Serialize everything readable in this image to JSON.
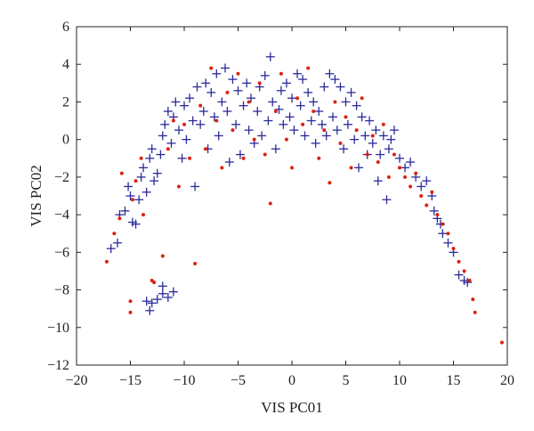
{
  "chart_data": {
    "type": "scatter",
    "xlabel": "VIS PC01",
    "ylabel": "VIS PC02",
    "xlim": [
      -20,
      20
    ],
    "ylim": [
      -12,
      6
    ],
    "xticks": [
      -20,
      -15,
      -10,
      -5,
      0,
      5,
      10,
      15,
      20
    ],
    "yticks": [
      -12,
      -10,
      -8,
      -6,
      -4,
      -2,
      0,
      2,
      4,
      6
    ],
    "grid": false,
    "legend": "none",
    "series": [
      {
        "marker": "plus",
        "color": "#2b2b9a",
        "points": [
          [
            -16.8,
            -5.8
          ],
          [
            -16.2,
            -5.5
          ],
          [
            -16.0,
            -4.0
          ],
          [
            -15.5,
            -3.8
          ],
          [
            -15.2,
            -2.5
          ],
          [
            -15.0,
            -3.0
          ],
          [
            -14.8,
            -4.4
          ],
          [
            -14.5,
            -4.5
          ],
          [
            -14.2,
            -3.2
          ],
          [
            -14.0,
            -2.0
          ],
          [
            -13.8,
            -1.5
          ],
          [
            -13.5,
            -2.8
          ],
          [
            -13.2,
            -1.0
          ],
          [
            -13.0,
            -0.5
          ],
          [
            -12.8,
            -2.2
          ],
          [
            -12.5,
            -1.8
          ],
          [
            -12.2,
            -0.8
          ],
          [
            -12.0,
            0.2
          ],
          [
            -11.8,
            0.8
          ],
          [
            -11.5,
            1.5
          ],
          [
            -11.2,
            -0.2
          ],
          [
            -11.0,
            1.2
          ],
          [
            -10.8,
            2.0
          ],
          [
            -10.5,
            0.5
          ],
          [
            -10.2,
            -1.0
          ],
          [
            -10.0,
            1.8
          ],
          [
            -9.8,
            0.0
          ],
          [
            -9.5,
            2.2
          ],
          [
            -9.2,
            1.0
          ],
          [
            -9.0,
            -2.5
          ],
          [
            -8.8,
            2.8
          ],
          [
            -8.5,
            0.8
          ],
          [
            -8.2,
            1.5
          ],
          [
            -8.0,
            3.0
          ],
          [
            -7.8,
            -0.5
          ],
          [
            -7.5,
            2.5
          ],
          [
            -7.2,
            1.2
          ],
          [
            -7.0,
            3.5
          ],
          [
            -6.8,
            0.2
          ],
          [
            -6.5,
            2.0
          ],
          [
            -6.2,
            3.8
          ],
          [
            -6.0,
            1.5
          ],
          [
            -5.8,
            -1.2
          ],
          [
            -5.5,
            3.2
          ],
          [
            -5.2,
            0.8
          ],
          [
            -5.0,
            2.6
          ],
          [
            -4.8,
            -0.8
          ],
          [
            -4.5,
            1.8
          ],
          [
            -4.2,
            3.0
          ],
          [
            -4.0,
            0.5
          ],
          [
            -3.8,
            2.2
          ],
          [
            -3.5,
            -0.2
          ],
          [
            -3.2,
            1.5
          ],
          [
            -3.0,
            2.8
          ],
          [
            -2.8,
            0.2
          ],
          [
            -2.5,
            3.4
          ],
          [
            -2.2,
            1.0
          ],
          [
            -2.0,
            4.4
          ],
          [
            -1.8,
            2.0
          ],
          [
            -1.5,
            -0.5
          ],
          [
            -1.2,
            1.6
          ],
          [
            -1.0,
            2.6
          ],
          [
            -0.8,
            0.8
          ],
          [
            -0.5,
            3.0
          ],
          [
            -0.2,
            1.2
          ],
          [
            0.0,
            2.2
          ],
          [
            0.2,
            0.5
          ],
          [
            0.5,
            3.5
          ],
          [
            0.8,
            1.8
          ],
          [
            1.0,
            3.2
          ],
          [
            1.2,
            0.2
          ],
          [
            1.5,
            2.5
          ],
          [
            1.8,
            1.0
          ],
          [
            2.0,
            2.0
          ],
          [
            2.2,
            -0.2
          ],
          [
            2.5,
            1.5
          ],
          [
            2.8,
            0.8
          ],
          [
            3.0,
            2.8
          ],
          [
            3.2,
            0.2
          ],
          [
            3.5,
            3.5
          ],
          [
            3.8,
            1.2
          ],
          [
            4.0,
            3.2
          ],
          [
            4.2,
            0.5
          ],
          [
            4.5,
            2.8
          ],
          [
            4.8,
            -0.5
          ],
          [
            5.0,
            2.0
          ],
          [
            5.2,
            0.8
          ],
          [
            5.5,
            2.5
          ],
          [
            5.8,
            0.0
          ],
          [
            6.0,
            1.8
          ],
          [
            6.2,
            -1.5
          ],
          [
            6.5,
            1.2
          ],
          [
            6.8,
            0.2
          ],
          [
            7.0,
            -0.8
          ],
          [
            7.2,
            1.0
          ],
          [
            7.5,
            -0.2
          ],
          [
            7.8,
            0.5
          ],
          [
            8.0,
            -2.2
          ],
          [
            8.2,
            -0.8
          ],
          [
            8.5,
            0.2
          ],
          [
            8.8,
            -3.2
          ],
          [
            9.0,
            -0.5
          ],
          [
            9.2,
            0.0
          ],
          [
            9.5,
            0.5
          ],
          [
            10.0,
            -1.0
          ],
          [
            10.5,
            -1.5
          ],
          [
            11.0,
            -1.2
          ],
          [
            11.5,
            -2.0
          ],
          [
            12.0,
            -2.5
          ],
          [
            12.5,
            -2.2
          ],
          [
            13.0,
            -3.0
          ],
          [
            13.2,
            -3.8
          ],
          [
            13.5,
            -4.2
          ],
          [
            13.8,
            -4.5
          ],
          [
            14.0,
            -5.0
          ],
          [
            14.5,
            -5.5
          ],
          [
            15.0,
            -6.0
          ],
          [
            15.5,
            -7.2
          ],
          [
            16.0,
            -7.5
          ],
          [
            16.3,
            -7.6
          ],
          [
            -13.5,
            -8.6
          ],
          [
            -13.0,
            -8.7
          ],
          [
            -12.5,
            -8.5
          ],
          [
            -12.0,
            -8.2
          ],
          [
            -11.5,
            -8.4
          ],
          [
            -11.0,
            -8.1
          ],
          [
            -13.2,
            -9.1
          ],
          [
            -12.0,
            -7.8
          ]
        ]
      },
      {
        "marker": "dot",
        "color": "#dd2211",
        "points": [
          [
            -17.2,
            -6.5
          ],
          [
            -16.5,
            -5.0
          ],
          [
            -16.0,
            -4.2
          ],
          [
            -15.8,
            -1.8
          ],
          [
            -15.0,
            -9.2
          ],
          [
            -15.0,
            -8.6
          ],
          [
            -14.8,
            -3.2
          ],
          [
            -14.5,
            -2.2
          ],
          [
            -14.0,
            -1.0
          ],
          [
            -13.8,
            -4.0
          ],
          [
            -13.0,
            -7.5
          ],
          [
            -12.8,
            -7.6
          ],
          [
            -12.0,
            -6.2
          ],
          [
            -11.5,
            -0.5
          ],
          [
            -11.0,
            1.0
          ],
          [
            -10.5,
            -2.5
          ],
          [
            -10.0,
            0.8
          ],
          [
            -9.5,
            -1.0
          ],
          [
            -9.0,
            -6.6
          ],
          [
            -8.5,
            1.8
          ],
          [
            -8.0,
            -0.5
          ],
          [
            -7.5,
            3.8
          ],
          [
            -7.0,
            1.0
          ],
          [
            -6.5,
            -1.5
          ],
          [
            -6.0,
            2.5
          ],
          [
            -5.5,
            0.5
          ],
          [
            -5.0,
            3.5
          ],
          [
            -4.5,
            -1.0
          ],
          [
            -4.0,
            2.0
          ],
          [
            -3.5,
            0.0
          ],
          [
            -3.0,
            3.0
          ],
          [
            -2.5,
            -0.8
          ],
          [
            -2.0,
            -3.4
          ],
          [
            -1.5,
            1.5
          ],
          [
            -1.0,
            3.5
          ],
          [
            -0.5,
            0.0
          ],
          [
            0.0,
            -1.5
          ],
          [
            0.5,
            2.2
          ],
          [
            1.0,
            0.8
          ],
          [
            1.5,
            3.8
          ],
          [
            2.0,
            1.5
          ],
          [
            2.5,
            -1.0
          ],
          [
            3.0,
            0.5
          ],
          [
            3.5,
            -2.3
          ],
          [
            4.0,
            2.0
          ],
          [
            4.5,
            -0.2
          ],
          [
            5.0,
            1.2
          ],
          [
            5.5,
            -1.5
          ],
          [
            6.0,
            0.5
          ],
          [
            6.5,
            2.2
          ],
          [
            7.0,
            -0.8
          ],
          [
            7.5,
            0.2
          ],
          [
            8.0,
            -1.2
          ],
          [
            8.5,
            0.8
          ],
          [
            9.0,
            -2.0
          ],
          [
            9.5,
            -0.8
          ],
          [
            10.0,
            -1.5
          ],
          [
            10.5,
            -2.0
          ],
          [
            11.0,
            -2.5
          ],
          [
            11.5,
            -1.8
          ],
          [
            12.0,
            -3.0
          ],
          [
            12.5,
            -3.5
          ],
          [
            13.0,
            -2.8
          ],
          [
            13.5,
            -4.0
          ],
          [
            14.0,
            -4.5
          ],
          [
            14.5,
            -5.0
          ],
          [
            15.0,
            -5.8
          ],
          [
            15.5,
            -6.5
          ],
          [
            16.0,
            -7.0
          ],
          [
            16.5,
            -7.5
          ],
          [
            16.8,
            -8.5
          ],
          [
            17.0,
            -9.2
          ],
          [
            19.5,
            -10.8
          ]
        ]
      }
    ]
  }
}
